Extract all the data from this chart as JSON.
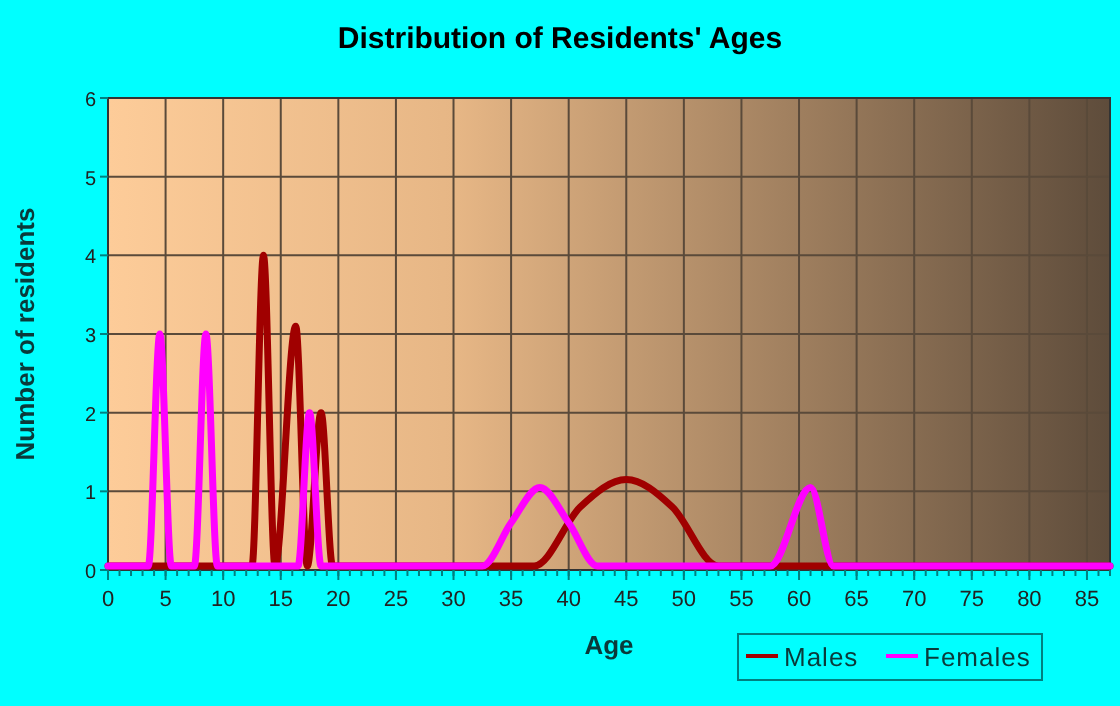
{
  "chart_data": {
    "type": "line",
    "title": "Distribution of Residents' Ages",
    "xlabel": "Age",
    "ylabel": "Number of residents",
    "xlim": [
      0,
      87
    ],
    "xticks": [
      0,
      5,
      10,
      15,
      20,
      25,
      30,
      35,
      40,
      45,
      50,
      55,
      60,
      65,
      70,
      75,
      80,
      85
    ],
    "ylim": [
      0,
      6
    ],
    "yticks": [
      0,
      1,
      2,
      3,
      4,
      5,
      6
    ],
    "grid": true,
    "legend": "bottom right",
    "marker": "none",
    "line_style": "solid",
    "series": [
      {
        "name": "Males",
        "color": "#a00000",
        "x": [
          0,
          12.5,
          13.5,
          14.5,
          16.3,
          17.3,
          18.5,
          19.5,
          37,
          41,
          45,
          49,
          53,
          87
        ],
        "values": [
          0.05,
          0.05,
          4,
          0.05,
          3.1,
          0.05,
          2,
          0.05,
          0.05,
          0.8,
          1.15,
          0.8,
          0.05,
          0.05
        ]
      },
      {
        "name": "Females",
        "color": "#ff00ff",
        "x": [
          0,
          3.5,
          4.5,
          5.5,
          7.5,
          8.5,
          9.5,
          16.5,
          17.5,
          18.5,
          32.5,
          35,
          37.5,
          40,
          42.5,
          57.5,
          61,
          63,
          87
        ],
        "values": [
          0.05,
          0.05,
          3,
          0.05,
          0.05,
          3,
          0.05,
          0.05,
          2,
          0.05,
          0.05,
          0.6,
          1.05,
          0.6,
          0.05,
          0.05,
          1.05,
          0.05,
          0.05
        ]
      }
    ]
  }
}
